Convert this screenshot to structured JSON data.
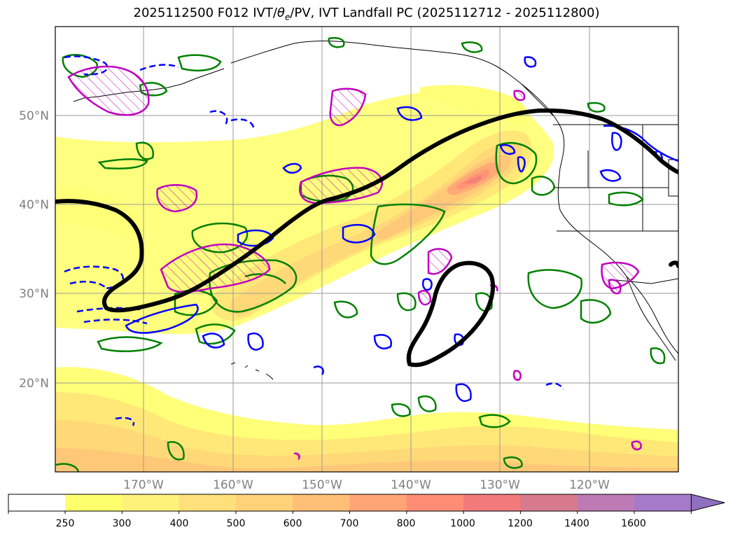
{
  "title": {
    "prefix": "2025112500 F012 IVT/",
    "theta": "θ",
    "theta_sub": "e",
    "suffix": "/PV, IVT Landfall PC (2025112712 - 2025112800)"
  },
  "map": {
    "lat_labels": [
      "50°N",
      "40°N",
      "30°N",
      "20°N"
    ],
    "lon_labels": [
      "170°W",
      "160°W",
      "150°W",
      "140°W",
      "130°W",
      "120°W"
    ]
  },
  "colorbar": {
    "levels": [
      "250",
      "300",
      "400",
      "500",
      "600",
      "700",
      "800",
      "1000",
      "1200",
      "1400",
      "1600"
    ],
    "colors": [
      "#ffff6e",
      "#fff27a",
      "#ffe07a",
      "#ffd27a",
      "#ffbe76",
      "#ffa474",
      "#ff8c74",
      "#f27a7a",
      "#d87a8e",
      "#bd7ab4",
      "#a57ac8"
    ],
    "extend": "max"
  },
  "ivt_colors": {
    "c250": "#ffff78",
    "c300": "#ffe878",
    "c400": "#ffd878",
    "c500": "#ffc878",
    "c600": "#ffaa76",
    "c700": "#ff9474",
    "c800": "#f58076"
  },
  "contour_colors": {
    "pv": "#008000",
    "theta_e": "#0000ff",
    "vorticity": "#c000c0",
    "landfall": "#000000",
    "coast": "#000000"
  }
}
